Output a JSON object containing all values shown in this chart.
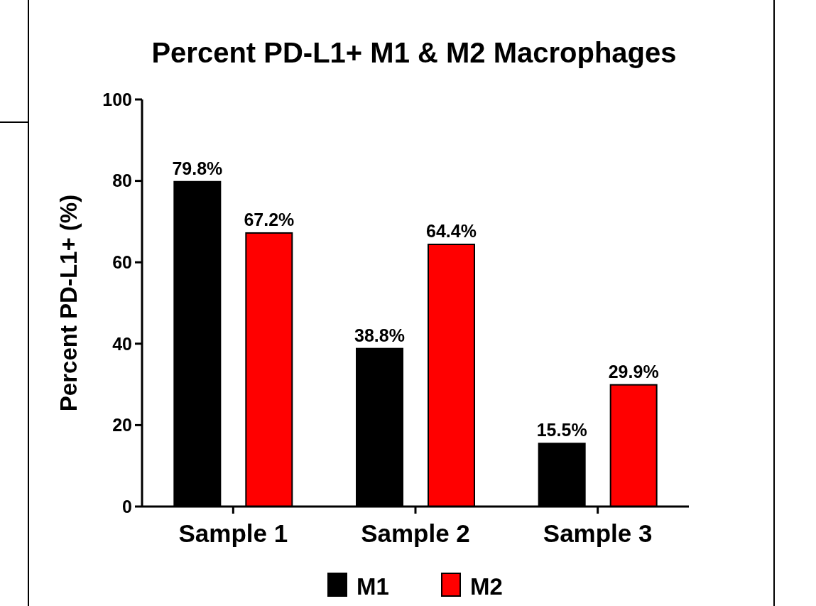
{
  "chart_data": {
    "type": "bar",
    "title": "Percent PD-L1+ M1 & M2 Macrophages",
    "ylabel": "Percent PD-L1+ (%)",
    "categories": [
      "Sample 1",
      "Sample 2",
      "Sample 3"
    ],
    "series": [
      {
        "name": "M1",
        "color": "#000000",
        "values": [
          79.8,
          38.8,
          15.5
        ],
        "value_labels": [
          "79.8%",
          "38.8%",
          "15.5%"
        ]
      },
      {
        "name": "M2",
        "color": "#ff0000",
        "values": [
          67.2,
          64.4,
          29.9
        ],
        "value_labels": [
          "67.2%",
          "64.4%",
          "29.9%"
        ]
      }
    ],
    "ylim": [
      0,
      100
    ],
    "yticks": [
      0,
      20,
      40,
      60,
      80,
      100
    ],
    "grid": false,
    "legend": "bottom"
  }
}
